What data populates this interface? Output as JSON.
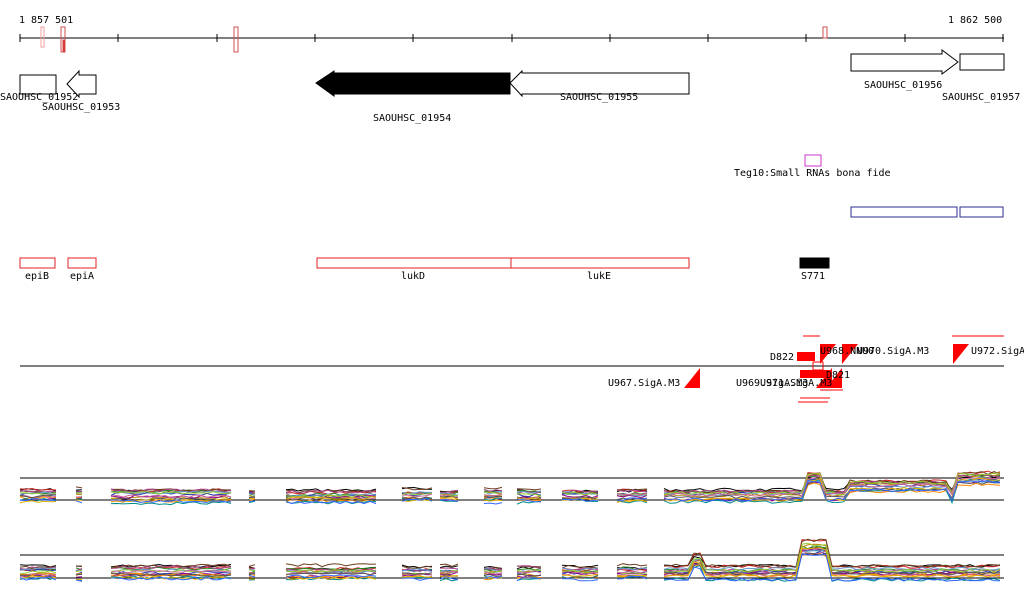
{
  "ruler": {
    "start_label": "1 857 501",
    "end_label": "1 862 500"
  },
  "genes": [
    {
      "id": "SAOUHSC_01952",
      "label": "SAOUHSC_01952",
      "strand": "+",
      "fill": "white"
    },
    {
      "id": "SAOUHSC_01953",
      "label": "SAOUHSC_01953",
      "strand": "-",
      "fill": "white"
    },
    {
      "id": "SAOUHSC_01954",
      "label": "SAOUHSC_01954",
      "strand": "-",
      "fill": "black"
    },
    {
      "id": "SAOUHSC_01955",
      "label": "SAOUHSC_01955",
      "strand": "-",
      "fill": "white"
    },
    {
      "id": "SAOUHSC_01956",
      "label": "SAOUHSC_01956",
      "strand": "+",
      "fill": "white"
    },
    {
      "id": "SAOUHSC_01957",
      "label": "SAOUHSC_01957",
      "strand": "+",
      "fill": "white"
    }
  ],
  "srna": {
    "label": "Teg10:Small RNAs bona fide",
    "color": "#cc33cc"
  },
  "blue_track_color": "#2b2b8f",
  "features": [
    {
      "label": "epiB",
      "color": "#e02020"
    },
    {
      "label": "epiA",
      "color": "#e02020"
    },
    {
      "label": "lukD",
      "color": "#e02020"
    },
    {
      "label": "lukE",
      "color": "#e02020"
    },
    {
      "label": "S771",
      "color": "#000000"
    }
  ],
  "tss": {
    "color": "#ff0000",
    "above": [
      {
        "label": "D822"
      },
      {
        "label": "U968.NNU0"
      },
      {
        "label": "U970.SigA.M3"
      },
      {
        "label": "U972.SigA"
      }
    ],
    "below": [
      {
        "label": "U967.SigA.M3"
      },
      {
        "label": "U969.SigA.M3"
      },
      {
        "label": "U971.SigA.M3"
      },
      {
        "label": "D821"
      }
    ]
  },
  "expression": {
    "series_colors": [
      "#000000",
      "#cc2222",
      "#2a8a2a",
      "#2233aa",
      "#b8860b",
      "#8b008b",
      "#ff8c00",
      "#008b8b",
      "#6b3e1f",
      "#aa4488",
      "#6699cc",
      "#99cc33",
      "#cc6699",
      "#555555",
      "#e0b000",
      "#3366ff"
    ]
  }
}
